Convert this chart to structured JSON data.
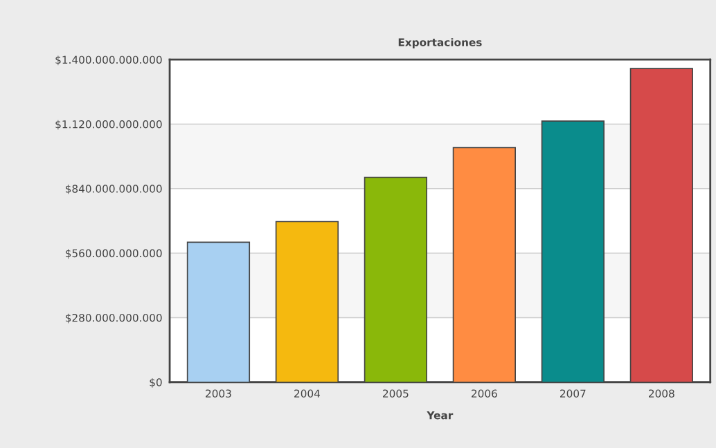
{
  "chart_data": {
    "type": "bar",
    "title": "Exportaciones",
    "xlabel": "Year",
    "categories": [
      "2003",
      "2004",
      "2005",
      "2006",
      "2007",
      "2008"
    ],
    "values": [
      607000000000,
      697000000000,
      889000000000,
      1018000000000,
      1133000000000,
      1361000000000
    ],
    "colors": [
      "#a8d0f2",
      "#f5b90f",
      "#8ab80a",
      "#ff8c42",
      "#0a8c8c",
      "#d64a4a"
    ],
    "ylim": [
      0,
      1400000000000
    ],
    "yticks": [
      {
        "value": 0,
        "label": "$0"
      },
      {
        "value": 280000000000,
        "label": "$280.000.000.000"
      },
      {
        "value": 560000000000,
        "label": "$560.000.000.000"
      },
      {
        "value": 840000000000,
        "label": "$840.000.000.000"
      },
      {
        "value": 1120000000000,
        "label": "$1.120.000.000.000"
      },
      {
        "value": 1400000000000,
        "label": "$1.400.000.000.000"
      }
    ],
    "grid": "y"
  }
}
